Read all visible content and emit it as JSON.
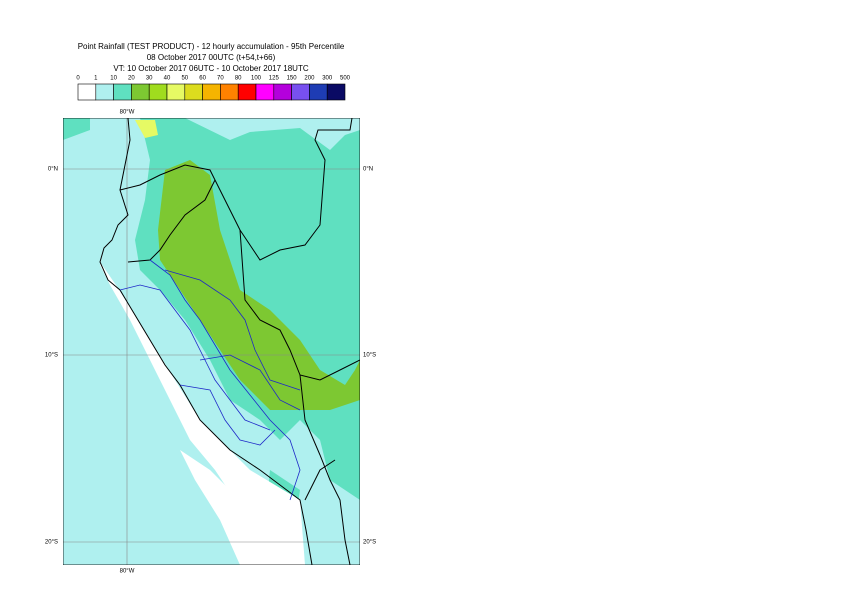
{
  "header": {
    "title": "Point Rainfall (TEST PRODUCT) - 12 hourly accumulation - 95th Percentile",
    "base_time": "08 October 2017 00UTC (t+54,t+66)",
    "valid_time": "VT: 10 October 2017 06UTC - 10 October 2017 18UTC"
  },
  "legend": {
    "labels": [
      "0",
      "1",
      "10",
      "20",
      "30",
      "40",
      "50",
      "60",
      "70",
      "80",
      "100",
      "125",
      "150",
      "200",
      "300",
      "500"
    ],
    "colors": [
      "#ffffff",
      "#aff0ef",
      "#5fe0c0",
      "#7dc832",
      "#a0dc1e",
      "#e6fa64",
      "#dcdc1e",
      "#f5b400",
      "#ff8200",
      "#ff0000",
      "#ff00ff",
      "#b400dc",
      "#7850f0",
      "#1e3cb4",
      "#0a0a64"
    ]
  },
  "map": {
    "lon_label_top": "80°W",
    "lon_label_bottom": "80°W",
    "lat_labels_left": [
      "0°N",
      "10°S",
      "20°S"
    ],
    "lat_labels_right": [
      "0°N",
      "10°S",
      "20°S"
    ]
  }
}
